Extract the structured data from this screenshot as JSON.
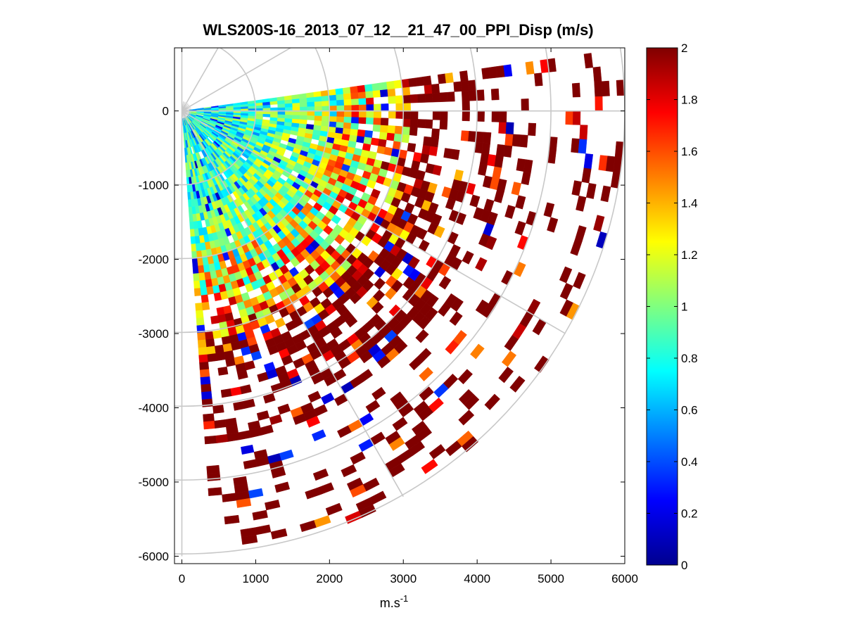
{
  "chart_data": {
    "type": "heatmap",
    "subtype": "polar-ppi-sector",
    "title": "WLS200S-16_2013_07_12__21_47_00_PPI_Disp (m/s)",
    "xlabel": "m.s",
    "xlabel_superscript": "-1",
    "ylabel": "",
    "xlim": [
      -100,
      6000
    ],
    "ylim": [
      -6100,
      850
    ],
    "xticks": [
      0,
      1000,
      2000,
      3000,
      4000,
      5000,
      6000
    ],
    "yticks": [
      0,
      -1000,
      -2000,
      -3000,
      -4000,
      -5000,
      -6000
    ],
    "xtick_labels": [
      "0",
      "1000",
      "2000",
      "3000",
      "4000",
      "5000",
      "6000"
    ],
    "ytick_labels": [
      "0",
      "-1000",
      "-2000",
      "-3000",
      "-4000",
      "-5000",
      "-6000"
    ],
    "colorbar": {
      "colormap": "jet",
      "clim": [
        0,
        2
      ],
      "ticks": [
        0,
        0.2,
        0.4,
        0.6,
        0.8,
        1,
        1.2,
        1.4,
        1.6,
        1.8,
        2
      ],
      "tick_labels": [
        "0",
        "0.2",
        "0.4",
        "0.6",
        "0.8",
        "1",
        "1.2",
        "1.4",
        "1.6",
        "1.8",
        "2"
      ]
    },
    "polar_grid": {
      "range_rings_m": [
        1000,
        2000,
        3000,
        4000,
        5000,
        6000
      ],
      "radial_lines_deg": [
        -90,
        -60,
        -30,
        0,
        30,
        60,
        90
      ],
      "grid_color": "#c8c8c8"
    },
    "scan": {
      "azimuth_start_deg": -86,
      "azimuth_end_deg": 8,
      "azimuth_step_deg": 2,
      "range_start_m": 100,
      "range_end_m": 6000,
      "range_step_m": 100
    },
    "value_trend": [
      {
        "range_m": 0,
        "typical_value": 0.75
      },
      {
        "range_m": 1000,
        "typical_value": 0.85
      },
      {
        "range_m": 2000,
        "typical_value": 1.1
      },
      {
        "range_m": 3000,
        "typical_value": 1.6
      },
      {
        "range_m": 4000,
        "typical_value": 2.0
      },
      {
        "range_m": 6000,
        "typical_value": 2.0
      }
    ],
    "missing_data": "white (no return) increasingly common beyond 3000 m"
  }
}
